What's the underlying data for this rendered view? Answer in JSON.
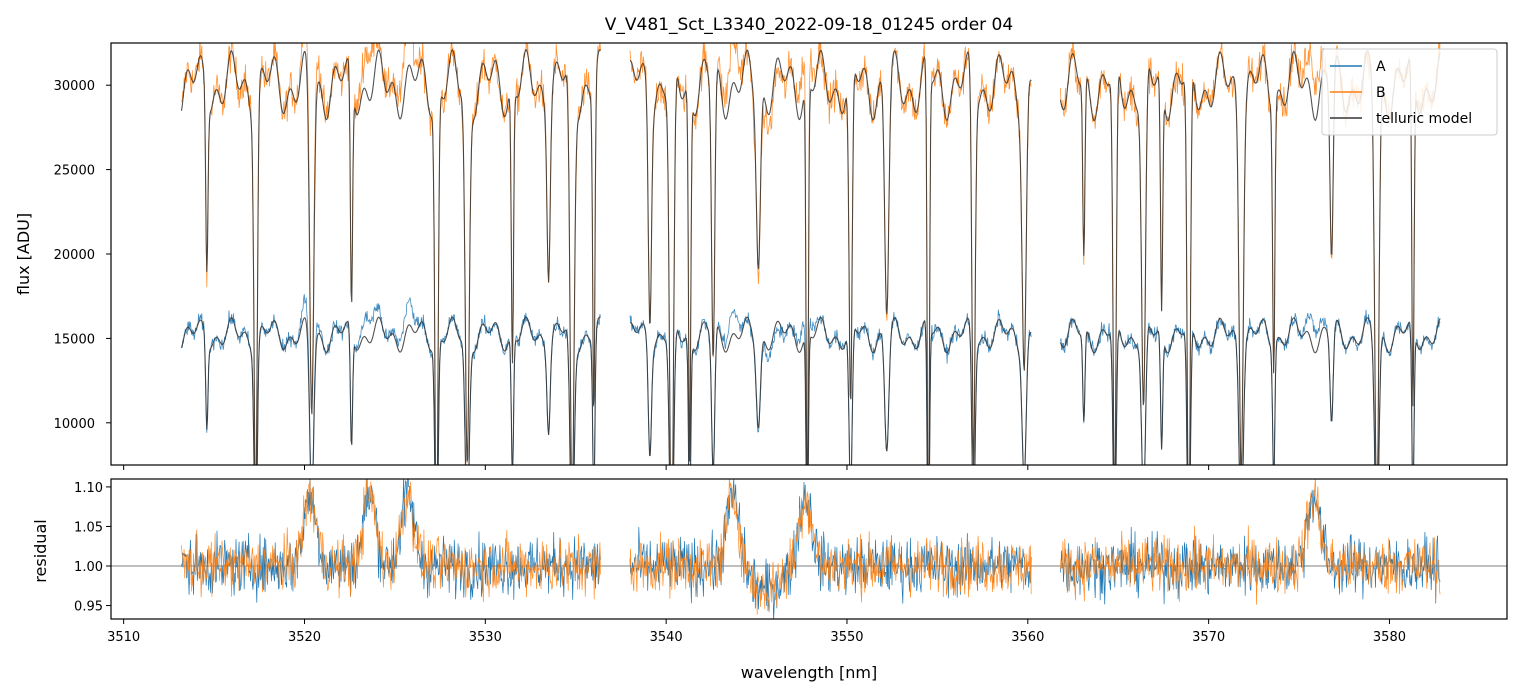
{
  "chart_data": [
    {
      "type": "line",
      "title": "V_V481_Sct_L3340_2022-09-18_01245  order 04",
      "xlabel": "",
      "ylabel": "flux [ADU]",
      "xlim": [
        3509.3,
        3586.5
      ],
      "ylim": [
        7500,
        32500
      ],
      "xticks": [
        3510,
        3520,
        3530,
        3540,
        3550,
        3560,
        3570,
        3580
      ],
      "yticks": [
        10000,
        15000,
        20000,
        25000,
        30000
      ],
      "ytick_labels": [
        "10000",
        "15000",
        "20000",
        "25000",
        "30000"
      ],
      "legend": {
        "position": "top-right",
        "entries": [
          "A",
          "B",
          "telluric model"
        ]
      },
      "segments": [
        [
          3513.2,
          3536.4
        ],
        [
          3538.0,
          3560.2
        ],
        [
          3561.8,
          3582.8
        ]
      ],
      "dip_centers": [
        3514.6,
        3517.3,
        3520.4,
        3522.6,
        3527.3,
        3529.0,
        3531.5,
        3533.5,
        3534.8,
        3536.0,
        3539.1,
        3540.3,
        3541.3,
        3542.6,
        3545.1,
        3547.8,
        3550.2,
        3552.2,
        3554.5,
        3557.0,
        3559.8,
        3563.1,
        3564.8,
        3566.4,
        3567.4,
        3568.9,
        3571.8,
        3573.6,
        3576.8,
        3579.3,
        3581.3
      ],
      "series": [
        {
          "name": "A",
          "color": "#1f77b4",
          "continuum": 15200
        },
        {
          "name": "B",
          "color": "#ff7f0e",
          "continuum": 30000
        },
        {
          "name": "telluric model",
          "color": "#333333"
        }
      ]
    },
    {
      "type": "line",
      "xlabel": "wavelength [nm]",
      "ylabel": "residual",
      "xlim": [
        3509.3,
        3586.5
      ],
      "ylim": [
        0.933,
        1.11
      ],
      "xticks": [
        3510,
        3520,
        3530,
        3540,
        3550,
        3560,
        3570,
        3580
      ],
      "xtick_labels": [
        "3510",
        "3520",
        "3530",
        "3540",
        "3550",
        "3560",
        "3570",
        "3580"
      ],
      "yticks": [
        0.95,
        1.0,
        1.05,
        1.1
      ],
      "ytick_labels": [
        "0.95",
        "1.00",
        "1.05",
        "1.10"
      ],
      "reference_line": 1.0,
      "emission_peaks": [
        3520.3,
        3523.6,
        3525.7,
        3543.7,
        3547.7,
        3575.8
      ],
      "series": [
        {
          "name": "A",
          "color": "#1f77b4"
        },
        {
          "name": "B",
          "color": "#ff7f0e"
        }
      ]
    }
  ]
}
